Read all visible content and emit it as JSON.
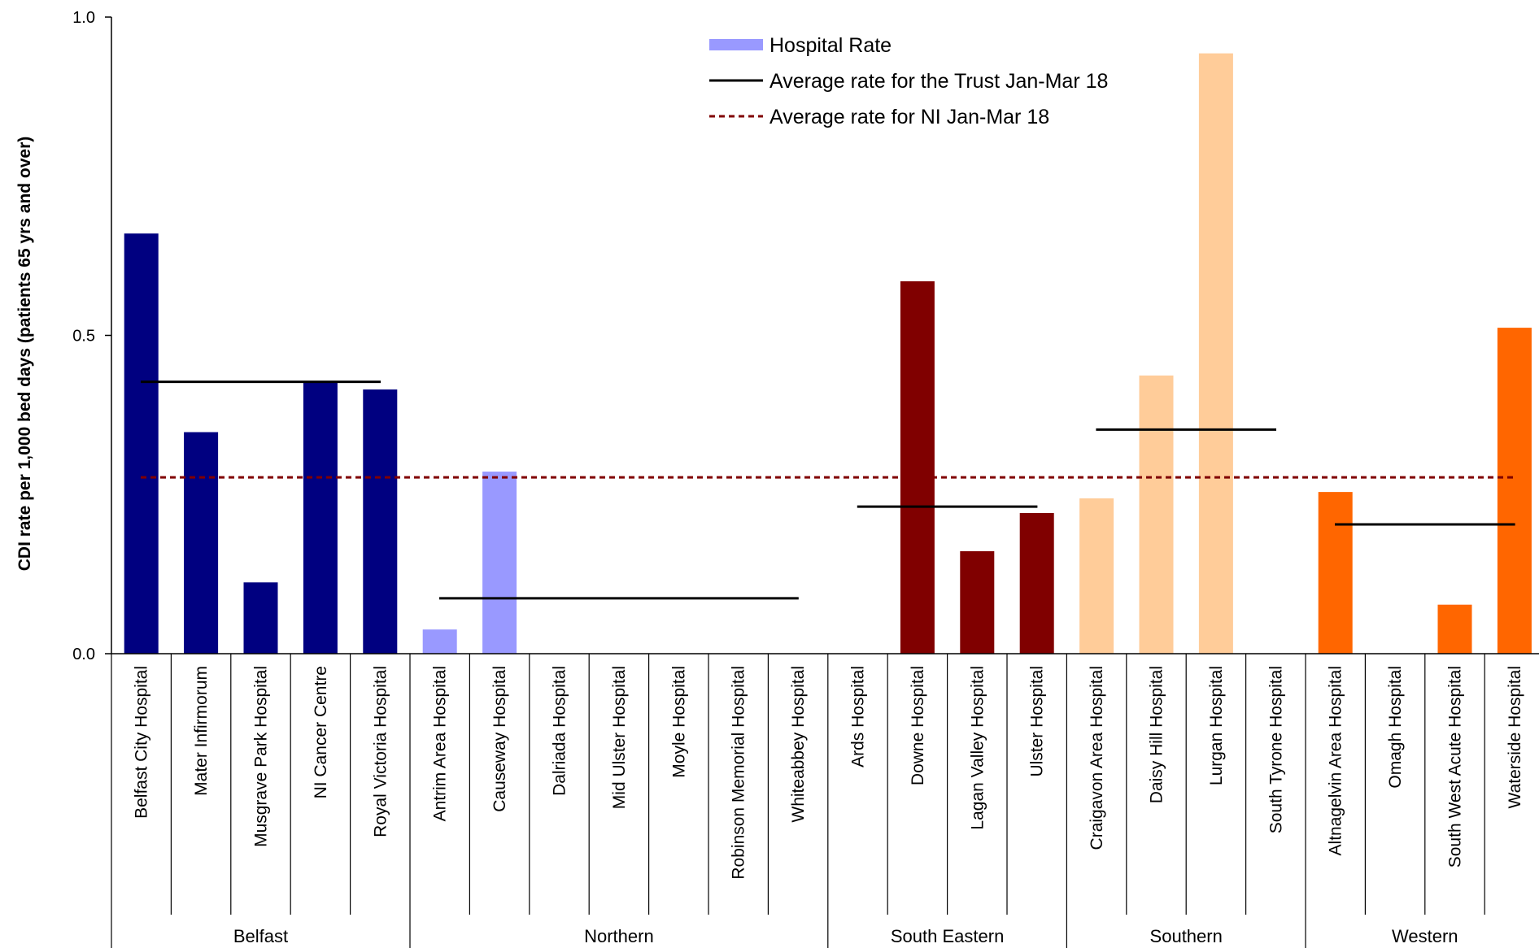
{
  "chart_data": {
    "type": "bar",
    "ylabel": "CDI rate per 1,000 bed days (patients 65 yrs and over)",
    "ylim": [
      0,
      1.0
    ],
    "yticks": [
      "0.0",
      "0.5",
      "1.0"
    ],
    "grid": false,
    "legend_position": "top-center",
    "legend": {
      "bar": "Hospital Rate",
      "trust": "Average rate for the Trust Jan-Mar 18",
      "ni": "Average rate for NI Jan-Mar 18"
    },
    "ni_average": 0.277,
    "groups": [
      {
        "name": "Belfast",
        "color": "#000080",
        "trust_average": 0.427,
        "hospitals": [
          {
            "name": "Belfast City Hospital",
            "value": 0.66
          },
          {
            "name": "Mater Infirmorum",
            "value": 0.348
          },
          {
            "name": "Musgrave Park Hospital",
            "value": 0.112
          },
          {
            "name": "NI Cancer Centre",
            "value": 0.428
          },
          {
            "name": "Royal Victoria Hospital",
            "value": 0.415
          }
        ]
      },
      {
        "name": "Northern",
        "color": "#9999FF",
        "trust_average": 0.087,
        "hospitals": [
          {
            "name": "Antrim Area Hospital",
            "value": 0.038
          },
          {
            "name": "Causeway Hospital",
            "value": 0.286
          },
          {
            "name": "Dalriada Hospital",
            "value": 0
          },
          {
            "name": "Mid Ulster Hospital",
            "value": 0
          },
          {
            "name": "Moyle Hospital",
            "value": 0
          },
          {
            "name": "Robinson Memorial Hospital",
            "value": 0
          },
          {
            "name": "Whiteabbey Hospital",
            "value": 0
          }
        ]
      },
      {
        "name": "South Eastern",
        "color": "#800000",
        "trust_average": 0.231,
        "hospitals": [
          {
            "name": "Ards Hospital",
            "value": 0
          },
          {
            "name": "Downe Hospital",
            "value": 0.585
          },
          {
            "name": "Lagan Valley Hospital",
            "value": 0.161
          },
          {
            "name": "Ulster Hospital",
            "value": 0.221
          }
        ]
      },
      {
        "name": "Southern",
        "color": "#FFCC99",
        "trust_average": 0.352,
        "hospitals": [
          {
            "name": "Craigavon Area Hospital",
            "value": 0.244
          },
          {
            "name": "Daisy Hill Hospital",
            "value": 0.437
          },
          {
            "name": "Lurgan Hospital",
            "value": 0.943
          },
          {
            "name": "South Tyrone Hospital",
            "value": 0
          }
        ]
      },
      {
        "name": "Western",
        "color": "#FF6600",
        "trust_average": 0.203,
        "hospitals": [
          {
            "name": "Altnagelvin Area Hospital",
            "value": 0.254
          },
          {
            "name": "Omagh Hospital",
            "value": 0
          },
          {
            "name": "South West Acute Hospital",
            "value": 0.077
          },
          {
            "name": "Waterside Hospital",
            "value": 0.512
          }
        ]
      }
    ]
  }
}
